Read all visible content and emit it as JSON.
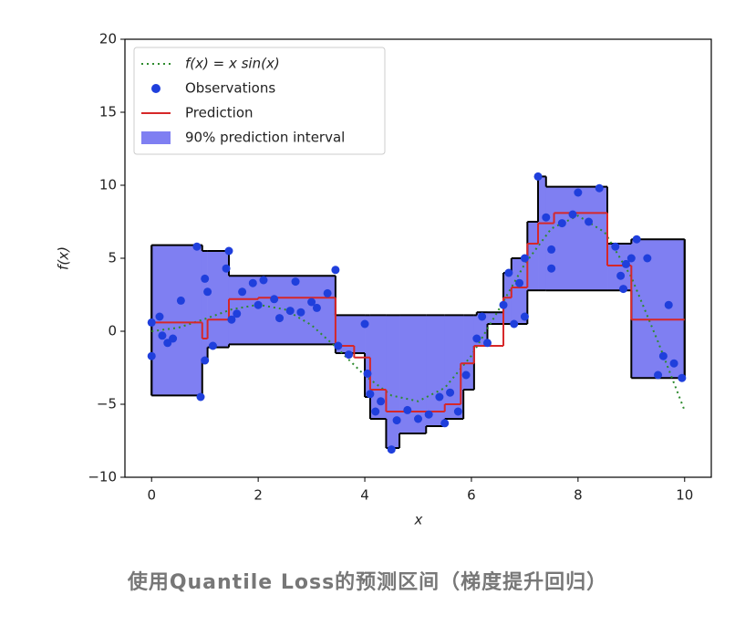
{
  "chart_data": {
    "type": "line",
    "caption": "使用Quantile Loss的预测区间（梯度提升回归）",
    "xlabel": "x",
    "ylabel": "f(x)",
    "xlim": [
      -0.5,
      10.5
    ],
    "ylim": [
      -10,
      20
    ],
    "xticks": [
      0,
      2,
      4,
      6,
      8,
      10
    ],
    "yticks": [
      {
        "value": -10,
        "label": "−10"
      },
      {
        "value": -5,
        "label": "−5"
      },
      0,
      5,
      10,
      15,
      20
    ],
    "legend": "upper left",
    "series": [
      {
        "name": "f(x) = x sin(x)",
        "type": "line",
        "color": "#2e8b2e",
        "x": [
          0,
          0.5,
          1,
          1.5,
          2,
          2.5,
          3,
          3.5,
          4,
          4.5,
          5,
          5.5,
          6,
          6.5,
          7,
          7.5,
          8,
          8.5,
          9,
          9.5,
          10
        ],
        "values": [
          0,
          0.24,
          0.841,
          1.496,
          1.819,
          1.496,
          0.423,
          -1.228,
          -3.027,
          -4.399,
          -4.795,
          -3.881,
          -1.676,
          1.398,
          4.599,
          7.035,
          7.915,
          6.785,
          3.709,
          -0.714,
          -5.44
        ]
      },
      {
        "name": "Observations",
        "type": "scatter",
        "color": "#1f3fdc",
        "x": [
          0.0,
          0.0,
          0.15,
          0.2,
          0.3,
          0.4,
          0.55,
          0.85,
          0.92,
          1.0,
          1.0,
          1.05,
          1.15,
          1.4,
          1.45,
          1.5,
          1.6,
          1.7,
          1.9,
          2.0,
          2.1,
          2.3,
          2.4,
          2.6,
          2.7,
          2.8,
          3.0,
          3.1,
          3.3,
          3.45,
          3.5,
          3.7,
          4.0,
          4.05,
          4.1,
          4.2,
          4.3,
          4.5,
          4.6,
          4.8,
          5.0,
          5.2,
          5.4,
          5.5,
          5.6,
          5.75,
          5.9,
          6.1,
          6.2,
          6.3,
          6.6,
          6.7,
          6.8,
          6.9,
          7.0,
          7.0,
          7.25,
          7.4,
          7.5,
          7.5,
          7.7,
          7.9,
          8.0,
          8.2,
          8.4,
          8.7,
          8.8,
          8.85,
          8.9,
          9.0,
          9.1,
          9.3,
          9.5,
          9.6,
          9.7,
          9.8,
          9.95
        ],
        "values": [
          0.6,
          -1.7,
          1.0,
          -0.3,
          -0.8,
          -0.5,
          2.1,
          5.8,
          -4.5,
          3.6,
          -2.0,
          2.7,
          -1.0,
          4.3,
          5.5,
          0.8,
          1.2,
          2.7,
          3.3,
          1.8,
          3.5,
          2.2,
          0.9,
          1.4,
          3.4,
          1.3,
          2.0,
          1.6,
          2.6,
          4.2,
          -1.0,
          -1.6,
          0.5,
          -2.9,
          -4.3,
          -5.5,
          -4.8,
          -8.1,
          -6.1,
          -5.4,
          -6.0,
          -5.7,
          -4.5,
          -6.3,
          -4.2,
          -5.5,
          -3.0,
          -0.5,
          1.0,
          -0.8,
          1.8,
          4.0,
          0.5,
          3.3,
          1.0,
          5.0,
          10.6,
          7.8,
          5.6,
          4.3,
          7.4,
          8.0,
          9.5,
          7.5,
          9.8,
          5.8,
          3.8,
          2.9,
          4.6,
          5.0,
          6.3,
          5.0,
          -3.0,
          -1.7,
          1.8,
          -2.2,
          -3.2
        ]
      },
      {
        "name": "Prediction",
        "type": "step",
        "color": "#d62728",
        "edges": [
          0,
          0.95,
          1.05,
          1.45,
          2.0,
          3.45,
          3.8,
          4.1,
          4.4,
          5.5,
          5.8,
          6.05,
          6.6,
          6.75,
          7.05,
          7.25,
          7.55,
          8.55,
          9.0,
          10
        ],
        "values": [
          0.6,
          -0.5,
          0.8,
          2.2,
          2.3,
          -1.0,
          -1.8,
          -4.0,
          -5.5,
          -5.0,
          -2.2,
          -1.0,
          2.3,
          3.0,
          6.0,
          7.4,
          8.1,
          4.5,
          0.8
        ]
      },
      {
        "name": "90% prediction interval",
        "type": "interval",
        "color": "#7f7ff2",
        "edges": [
          0,
          0.95,
          1.05,
          1.45,
          3.45,
          4.0,
          4.1,
          4.4,
          4.65,
          5.15,
          5.5,
          5.85,
          6.05,
          6.1,
          6.3,
          6.6,
          6.75,
          7.05,
          7.25,
          7.4,
          8.55,
          9.0,
          10
        ],
        "upper": [
          5.9,
          5.5,
          5.5,
          3.8,
          1.1,
          1.1,
          1.1,
          1.1,
          1.1,
          1.1,
          1.1,
          1.1,
          1.1,
          1.3,
          1.3,
          4.0,
          5.0,
          7.5,
          10.6,
          9.9,
          6.0,
          6.3
        ],
        "lower": [
          -4.4,
          -2.0,
          -1.1,
          -0.9,
          -1.5,
          -4.5,
          -6.0,
          -8.0,
          -7.0,
          -6.5,
          -6.0,
          -4.0,
          -1.0,
          -1.0,
          0.5,
          0.5,
          0.5,
          2.8,
          2.8,
          2.8,
          2.8,
          -3.2
        ]
      }
    ]
  }
}
